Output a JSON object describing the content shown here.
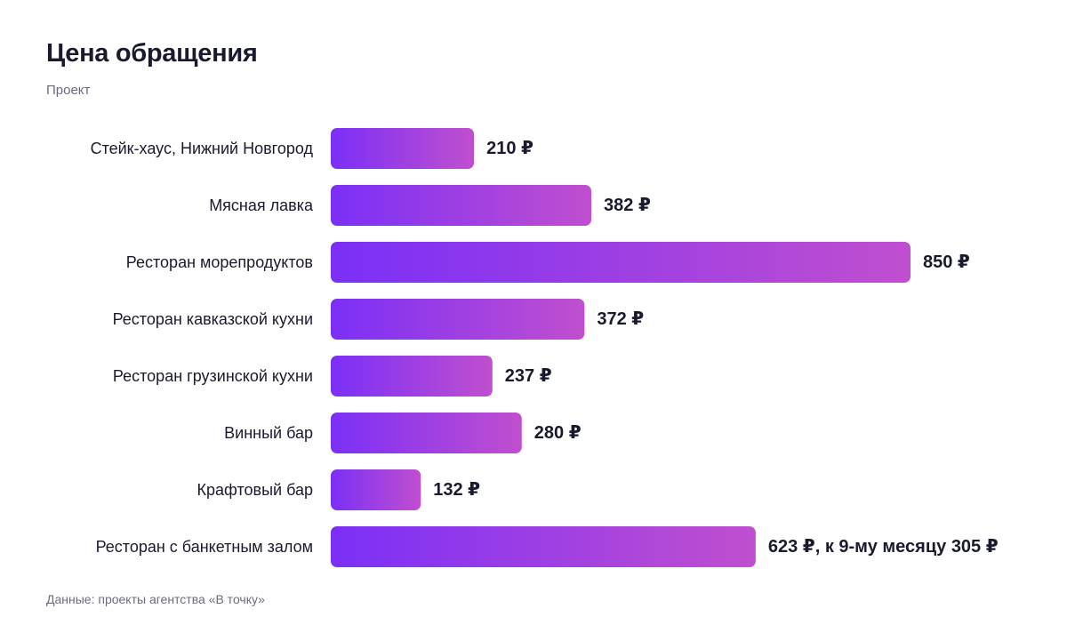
{
  "header": {
    "title": "Цена обращения",
    "subtitle": "Проект"
  },
  "footer": {
    "source": "Данные: проекты агентства «В точку»"
  },
  "colors": {
    "bar_start": "#7b2ff7",
    "bar_end": "#c04fcf",
    "text": "#1a1a2e",
    "muted": "#6b6b80"
  },
  "chart_data": {
    "type": "bar",
    "orientation": "horizontal",
    "title": "Цена обращения",
    "subtitle": "Проект",
    "categories": [
      "Стейк-хаус, Нижний Новгород",
      "Мясная лавка",
      "Ресторан морепродуктов",
      "Ресторан кавказской кухни",
      "Ресторан грузинской кухни",
      "Винный бар",
      "Крафтовый бар",
      "Ресторан с банкетным залом"
    ],
    "values": [
      210,
      382,
      850,
      372,
      237,
      280,
      132,
      623
    ],
    "value_labels": [
      "210 ₽",
      "382 ₽",
      "850 ₽",
      "372 ₽",
      "237 ₽",
      "280 ₽",
      "132 ₽",
      "623 ₽, к 9-му месяцу 305 ₽"
    ],
    "unit": "₽",
    "xlim": [
      0,
      850
    ],
    "grid": false,
    "legend": "none"
  }
}
